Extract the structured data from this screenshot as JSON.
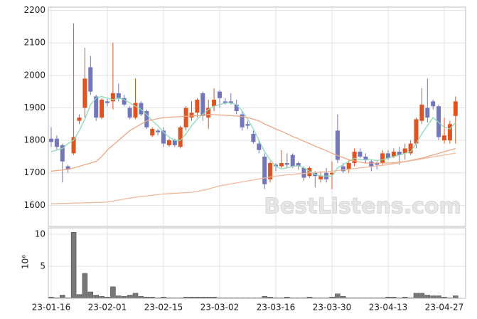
{
  "chart_data": {
    "type": "candlestick",
    "categories": [
      "23-01-16",
      null,
      null,
      null,
      null,
      null,
      null,
      null,
      null,
      null,
      "23-02-01",
      null,
      null,
      null,
      null,
      null,
      null,
      null,
      null,
      null,
      "23-02-15",
      null,
      null,
      null,
      null,
      null,
      null,
      null,
      null,
      null,
      "23-03-02",
      null,
      null,
      null,
      null,
      null,
      null,
      null,
      null,
      null,
      "23-03-16",
      null,
      null,
      null,
      null,
      null,
      null,
      null,
      null,
      null,
      "23-03-30",
      null,
      null,
      null,
      null,
      null,
      null,
      null,
      null,
      null,
      "23-04-13",
      null,
      null,
      null,
      null,
      null,
      null,
      null,
      null,
      null,
      "23-04-27",
      null,
      null
    ],
    "open": [
      1805,
      1805,
      1785,
      1720,
      1760,
      1860,
      1900,
      2025,
      1935,
      1870,
      1920,
      1920,
      1945,
      1930,
      1900,
      1870,
      1915,
      1890,
      1815,
      1830,
      1830,
      1785,
      1800,
      1780,
      1840,
      1870,
      1885,
      1945,
      1870,
      1905,
      1950,
      1920,
      1920,
      1910,
      1880,
      1850,
      1820,
      1790,
      1750,
      1680,
      1725,
      1720,
      1730,
      1755,
      1730,
      1715,
      1690,
      1700,
      1680,
      1700,
      1695,
      1830,
      1720,
      1710,
      1730,
      1765,
      1750,
      1735,
      1730,
      1730,
      1760,
      1750,
      1765,
      1760,
      1760,
      1790,
      1860,
      1900,
      1920,
      1905,
      1800,
      1800,
      1875
    ],
    "high": [
      1840,
      1815,
      1790,
      1725,
      2160,
      1880,
      2085,
      2060,
      1940,
      1930,
      1930,
      2100,
      1975,
      1940,
      1905,
      1990,
      1920,
      1895,
      1840,
      1835,
      1840,
      1805,
      1805,
      1845,
      1905,
      1920,
      1930,
      1950,
      1925,
      1960,
      1955,
      1930,
      1945,
      1925,
      1890,
      1860,
      1830,
      1800,
      1760,
      1735,
      1730,
      1770,
      1760,
      1760,
      1735,
      1720,
      1720,
      1705,
      1705,
      1715,
      1735,
      1880,
      1730,
      1740,
      1775,
      1775,
      1760,
      1740,
      1740,
      1770,
      1770,
      1775,
      1780,
      1790,
      1800,
      1870,
      1960,
      1990,
      1925,
      1910,
      1870,
      1860,
      1935
    ],
    "low": [
      1780,
      1770,
      1670,
      1700,
      1755,
      1850,
      1870,
      1940,
      1860,
      1865,
      1905,
      1895,
      1920,
      1905,
      1865,
      1865,
      1875,
      1835,
      1810,
      1815,
      1780,
      1780,
      1780,
      1775,
      1830,
      1860,
      1870,
      1860,
      1835,
      1890,
      1900,
      1910,
      1910,
      1880,
      1830,
      1835,
      1790,
      1760,
      1650,
      1670,
      1705,
      1715,
      1715,
      1715,
      1710,
      1675,
      1685,
      1655,
      1670,
      1670,
      1650,
      1730,
      1700,
      1700,
      1720,
      1745,
      1730,
      1705,
      1710,
      1725,
      1740,
      1745,
      1725,
      1740,
      1755,
      1775,
      1850,
      1855,
      1895,
      1800,
      1790,
      1790,
      1790
    ],
    "close": [
      1795,
      1780,
      1735,
      1710,
      1810,
      1870,
      1990,
      1950,
      1870,
      1925,
      1915,
      1945,
      1930,
      1910,
      1870,
      1915,
      1880,
      1840,
      1835,
      1825,
      1790,
      1800,
      1785,
      1840,
      1900,
      1885,
      1925,
      1875,
      1900,
      1925,
      1930,
      1915,
      1915,
      1890,
      1840,
      1845,
      1795,
      1770,
      1665,
      1730,
      1720,
      1730,
      1725,
      1720,
      1720,
      1685,
      1715,
      1690,
      1690,
      1680,
      1700,
      1740,
      1705,
      1730,
      1765,
      1750,
      1740,
      1720,
      1725,
      1760,
      1745,
      1765,
      1755,
      1775,
      1790,
      1865,
      1910,
      1870,
      1905,
      1810,
      1815,
      1850,
      1920
    ],
    "up_color": "#e0531f",
    "down_color": "#7376b9",
    "series": [
      {
        "color": "#8fd9b6",
        "values": [
          1765,
          1770,
          1775,
          1790,
          1800,
          1830,
          1865,
          1910,
          1930,
          1935,
          1930,
          1925,
          1930,
          1925,
          1915,
          1905,
          1895,
          1880,
          1860,
          1845,
          1825,
          1810,
          1800,
          1800,
          1820,
          1845,
          1865,
          1880,
          1895,
          1905,
          1910,
          1915,
          1915,
          1910,
          1890,
          1865,
          1835,
          1800,
          1765,
          1740,
          1720,
          1712,
          1715,
          1720,
          1722,
          1715,
          1705,
          1695,
          1690,
          1690,
          1690,
          1715,
          1725,
          1735,
          1745,
          1740,
          1740,
          1740,
          1738,
          1740,
          1745,
          1750,
          1755,
          1760,
          1765,
          1790,
          1820,
          1845,
          1870,
          1855,
          1840,
          1835,
          1855
        ]
      },
      {
        "color": "#eda787",
        "values": [
          1705,
          1707,
          1709,
          1711,
          1715,
          1720,
          1725,
          1730,
          1735,
          1750,
          1770,
          1785,
          1800,
          1815,
          1830,
          1840,
          1850,
          1860,
          1863,
          1867,
          1870,
          1871,
          1872,
          1873,
          1874,
          1875,
          1876,
          1877,
          1880,
          1879,
          1878,
          1877,
          1876,
          1875,
          1873,
          1870,
          1865,
          1860,
          1850,
          1843,
          1835,
          1828,
          1820,
          1812,
          1805,
          1797,
          1790,
          1782,
          1775,
          1768,
          1760,
          1753,
          1747,
          1740,
          1737,
          1733,
          1730,
          1730,
          1730,
          1730,
          1730,
          1731,
          1733,
          1735,
          1738,
          1742,
          1745,
          1750,
          1755,
          1760,
          1765,
          1770,
          1775
        ]
      },
      {
        "color": "#efb99c",
        "values": [
          1605,
          1605,
          1606,
          1606,
          1607,
          1607,
          1608,
          1608,
          1609,
          1609,
          1610,
          1613,
          1616,
          1619,
          1622,
          1625,
          1627,
          1629,
          1631,
          1633,
          1635,
          1636,
          1637,
          1638,
          1639,
          1640,
          1643,
          1646,
          1650,
          1655,
          1660,
          1663,
          1666,
          1669,
          1672,
          1675,
          1678,
          1681,
          1684,
          1687,
          1690,
          1692,
          1694,
          1695,
          1697,
          1698,
          1700,
          1701,
          1702,
          1704,
          1705,
          1707,
          1709,
          1711,
          1713,
          1715,
          1717,
          1719,
          1721,
          1723,
          1725,
          1728,
          1731,
          1734,
          1737,
          1740,
          1743,
          1746,
          1749,
          1752,
          1755,
          1758,
          1760
        ]
      }
    ],
    "ylim": [
      1535,
      2210
    ],
    "yticks": [
      1600,
      1700,
      1800,
      1900,
      2000,
      2100,
      2200
    ],
    "grid": true,
    "watermark": "BestListens.com",
    "volume": {
      "values": [
        0.2,
        0.1,
        0.5,
        0.1,
        10.3,
        0.6,
        3.9,
        1.0,
        0.5,
        0.3,
        0.2,
        1.8,
        0.4,
        0.3,
        0.5,
        0.8,
        0.3,
        0.2,
        0.2,
        0.1,
        0.2,
        0.1,
        0.1,
        0.1,
        0.2,
        0.2,
        0.2,
        0.2,
        0.2,
        0.2,
        0.1,
        0.1,
        0.1,
        0.1,
        0.1,
        0.1,
        0.1,
        0.1,
        0.3,
        0.2,
        0.1,
        0.1,
        0.2,
        0.1,
        0.1,
        0.1,
        0.2,
        0.1,
        0.1,
        0.1,
        0.2,
        0.7,
        0.3,
        0.1,
        0.1,
        0.1,
        0.1,
        0.1,
        0.1,
        0.1,
        0.2,
        0.2,
        0.1,
        0.2,
        0.1,
        0.8,
        0.8,
        0.5,
        0.4,
        0.4,
        0.2,
        0.1,
        0.4
      ],
      "color": "#777777",
      "ylim": [
        0,
        11
      ],
      "yticks": [
        5,
        10
      ],
      "axis_label": "10⁶"
    }
  }
}
